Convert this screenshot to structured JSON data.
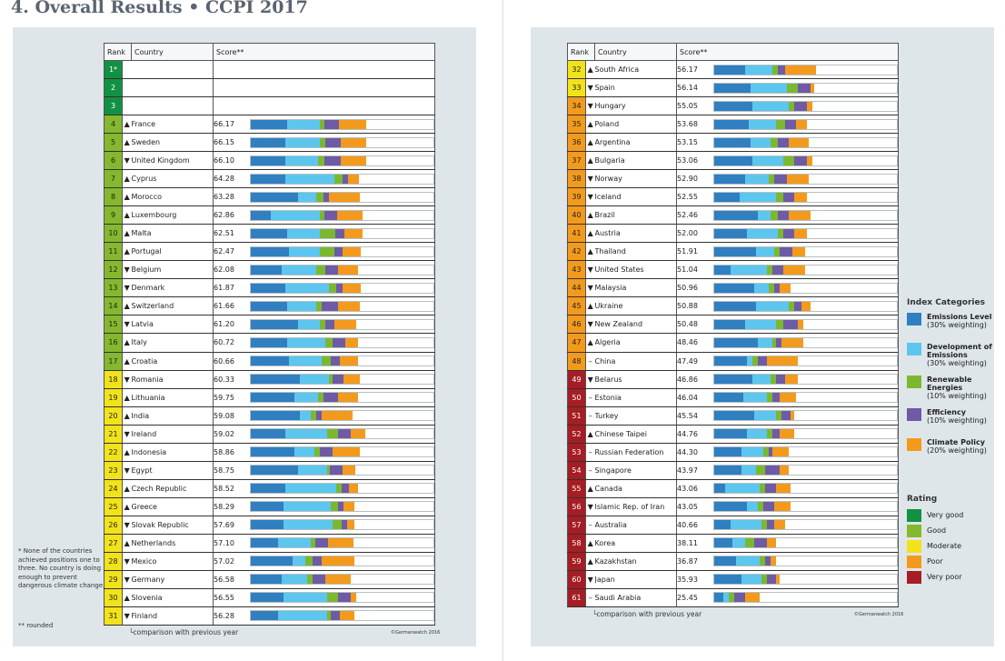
{
  "title": "4. Overall Results • CCPI 2017",
  "headers": {
    "rank": "Rank",
    "country": "Country",
    "score": "Score**"
  },
  "colors": {
    "emissions_level": "#2f7fc1",
    "development_of_emissions": "#5cc6ef",
    "renewable_energies": "#7cb82f",
    "efficiency": "#6e5aa5",
    "climate_policy": "#f39a1c",
    "very_good": "#129144",
    "good": "#86b82e",
    "moderate": "#f2e21a",
    "poor": "#f39a1c",
    "very_poor": "#a61d24"
  },
  "left_rows": [
    {
      "rank": "1*",
      "trend": "",
      "country": "",
      "score": "",
      "rating": "vg",
      "bars": []
    },
    {
      "rank": "2",
      "trend": "",
      "country": "",
      "score": "",
      "rating": "vg",
      "bars": []
    },
    {
      "rank": "3",
      "trend": "",
      "country": "",
      "score": "",
      "rating": "vg",
      "bars": []
    },
    {
      "rank": "4",
      "trend": "up",
      "country": "France",
      "score": "66.17",
      "rating": "g",
      "bars": [
        40,
        36,
        5,
        16,
        30
      ]
    },
    {
      "rank": "5",
      "trend": "up",
      "country": "Sweden",
      "score": "66.15",
      "rating": "g",
      "bars": [
        38,
        38,
        6,
        17,
        28
      ]
    },
    {
      "rank": "6",
      "trend": "down",
      "country": "United Kingdom",
      "score": "66.10",
      "rating": "g",
      "bars": [
        38,
        36,
        7,
        18,
        28
      ]
    },
    {
      "rank": "7",
      "trend": "up",
      "country": "Cyprus",
      "score": "64.28",
      "rating": "g",
      "bars": [
        38,
        54,
        9,
        6,
        12
      ]
    },
    {
      "rank": "8",
      "trend": "up",
      "country": "Morocco",
      "score": "63.28",
      "rating": "g",
      "bars": [
        52,
        20,
        8,
        6,
        34
      ]
    },
    {
      "rank": "9",
      "trend": "up",
      "country": "Luxembourg",
      "score": "62.86",
      "rating": "g",
      "bars": [
        22,
        54,
        5,
        14,
        28
      ]
    },
    {
      "rank": "10",
      "trend": "up",
      "country": "Malta",
      "score": "62.51",
      "rating": "g",
      "bars": [
        40,
        36,
        17,
        10,
        20
      ]
    },
    {
      "rank": "11",
      "trend": "up",
      "country": "Portugal",
      "score": "62.47",
      "rating": "g",
      "bars": [
        42,
        34,
        16,
        9,
        20
      ]
    },
    {
      "rank": "12",
      "trend": "down",
      "country": "Belgium",
      "score": "62.08",
      "rating": "g",
      "bars": [
        34,
        38,
        10,
        14,
        22
      ]
    },
    {
      "rank": "13",
      "trend": "down",
      "country": "Denmark",
      "score": "61.87",
      "rating": "g",
      "bars": [
        38,
        48,
        8,
        7,
        20
      ]
    },
    {
      "rank": "14",
      "trend": "up",
      "country": "Switzerland",
      "score": "61.66",
      "rating": "g",
      "bars": [
        40,
        32,
        6,
        18,
        24
      ]
    },
    {
      "rank": "15",
      "trend": "down",
      "country": "Latvia",
      "score": "61.20",
      "rating": "g",
      "bars": [
        52,
        24,
        6,
        10,
        24
      ]
    },
    {
      "rank": "16",
      "trend": "up",
      "country": "Italy",
      "score": "60.72",
      "rating": "g",
      "bars": [
        40,
        42,
        8,
        14,
        14
      ]
    },
    {
      "rank": "17",
      "trend": "up",
      "country": "Croatia",
      "score": "60.66",
      "rating": "g",
      "bars": [
        42,
        36,
        10,
        10,
        20
      ]
    },
    {
      "rank": "18",
      "trend": "down",
      "country": "Romania",
      "score": "60.33",
      "rating": "m",
      "bars": [
        54,
        32,
        4,
        12,
        18
      ]
    },
    {
      "rank": "19",
      "trend": "up",
      "country": "Lithuania",
      "score": "59.75",
      "rating": "m",
      "bars": [
        48,
        26,
        6,
        16,
        22
      ]
    },
    {
      "rank": "20",
      "trend": "up",
      "country": "India",
      "score": "59.08",
      "rating": "m",
      "bars": [
        54,
        12,
        6,
        6,
        34
      ]
    },
    {
      "rank": "21",
      "trend": "down",
      "country": "Ireland",
      "score": "59.02",
      "rating": "m",
      "bars": [
        38,
        46,
        12,
        14,
        16
      ]
    },
    {
      "rank": "22",
      "trend": "up",
      "country": "Indonesia",
      "score": "58.86",
      "rating": "m",
      "bars": [
        48,
        22,
        6,
        14,
        30
      ]
    },
    {
      "rank": "23",
      "trend": "down",
      "country": "Egypt",
      "score": "58.75",
      "rating": "m",
      "bars": [
        52,
        32,
        3,
        14,
        14
      ]
    },
    {
      "rank": "24",
      "trend": "up",
      "country": "Czech Republic",
      "score": "58.52",
      "rating": "m",
      "bars": [
        38,
        56,
        6,
        8,
        10
      ]
    },
    {
      "rank": "25",
      "trend": "up",
      "country": "Greece",
      "score": "58.29",
      "rating": "m",
      "bars": [
        36,
        52,
        8,
        6,
        12
      ]
    },
    {
      "rank": "26",
      "trend": "down",
      "country": "Slovak Republic",
      "score": "57.69",
      "rating": "m",
      "bars": [
        36,
        54,
        10,
        6,
        8
      ]
    },
    {
      "rank": "27",
      "trend": "up",
      "country": "Netherlands",
      "score": "57.10",
      "rating": "m",
      "bars": [
        30,
        36,
        5,
        14,
        28
      ]
    },
    {
      "rank": "28",
      "trend": "down",
      "country": "Mexico",
      "score": "57.02",
      "rating": "m",
      "bars": [
        46,
        14,
        8,
        10,
        36
      ]
    },
    {
      "rank": "29",
      "trend": "down",
      "country": "Germany",
      "score": "56.58",
      "rating": "m",
      "bars": [
        34,
        28,
        6,
        14,
        28
      ]
    },
    {
      "rank": "30",
      "trend": "up",
      "country": "Slovenia",
      "score": "56.55",
      "rating": "m",
      "bars": [
        36,
        48,
        12,
        14,
        6
      ]
    },
    {
      "rank": "31",
      "trend": "down",
      "country": "Finland",
      "score": "56.28",
      "rating": "m",
      "bars": [
        30,
        54,
        4,
        10,
        16
      ]
    }
  ],
  "right_rows": [
    {
      "rank": "32",
      "trend": "up",
      "country": "South Africa",
      "score": "56.17",
      "rating": "m",
      "bars": [
        34,
        30,
        6,
        8,
        34
      ]
    },
    {
      "rank": "33",
      "trend": "down",
      "country": "Spain",
      "score": "56.14",
      "rating": "m",
      "bars": [
        40,
        40,
        12,
        14,
        4
      ]
    },
    {
      "rank": "34",
      "trend": "down",
      "country": "Hungary",
      "score": "55.05",
      "rating": "p",
      "bars": [
        42,
        40,
        6,
        14,
        6
      ]
    },
    {
      "rank": "35",
      "trend": "up",
      "country": "Poland",
      "score": "53.68",
      "rating": "p",
      "bars": [
        38,
        30,
        10,
        12,
        12
      ]
    },
    {
      "rank": "36",
      "trend": "up",
      "country": "Argentina",
      "score": "53.15",
      "rating": "p",
      "bars": [
        40,
        22,
        8,
        12,
        22
      ]
    },
    {
      "rank": "37",
      "trend": "up",
      "country": "Bulgaria",
      "score": "53.06",
      "rating": "p",
      "bars": [
        42,
        34,
        12,
        14,
        6
      ]
    },
    {
      "rank": "38",
      "trend": "down",
      "country": "Norway",
      "score": "52.90",
      "rating": "p",
      "bars": [
        34,
        26,
        6,
        14,
        24
      ]
    },
    {
      "rank": "39",
      "trend": "down",
      "country": "Iceland",
      "score": "52.55",
      "rating": "p",
      "bars": [
        28,
        40,
        8,
        12,
        14
      ]
    },
    {
      "rank": "40",
      "trend": "up",
      "country": "Brazil",
      "score": "52.46",
      "rating": "p",
      "bars": [
        48,
        14,
        8,
        12,
        24
      ]
    },
    {
      "rank": "41",
      "trend": "up",
      "country": "Austria",
      "score": "52.00",
      "rating": "p",
      "bars": [
        36,
        34,
        6,
        12,
        14
      ]
    },
    {
      "rank": "42",
      "trend": "up",
      "country": "Thailand",
      "score": "51.91",
      "rating": "p",
      "bars": [
        46,
        20,
        6,
        14,
        14
      ]
    },
    {
      "rank": "43",
      "trend": "down",
      "country": "United States",
      "score": "51.04",
      "rating": "p",
      "bars": [
        18,
        40,
        6,
        12,
        24
      ]
    },
    {
      "rank": "44",
      "trend": "down",
      "country": "Malaysia",
      "score": "50.96",
      "rating": "p",
      "bars": [
        44,
        16,
        6,
        6,
        12
      ]
    },
    {
      "rank": "45",
      "trend": "up",
      "country": "Ukraine",
      "score": "50.88",
      "rating": "p",
      "bars": [
        46,
        36,
        6,
        8,
        10
      ]
    },
    {
      "rank": "46",
      "trend": "down",
      "country": "New Zealand",
      "score": "50.48",
      "rating": "p",
      "bars": [
        34,
        34,
        8,
        16,
        6
      ]
    },
    {
      "rank": "47",
      "trend": "up",
      "country": "Algeria",
      "score": "48.46",
      "rating": "p",
      "bars": [
        48,
        16,
        4,
        6,
        24
      ]
    },
    {
      "rank": "48",
      "trend": "dash",
      "country": "China",
      "score": "47.49",
      "rating": "p",
      "bars": [
        36,
        6,
        6,
        10,
        34
      ]
    },
    {
      "rank": "49",
      "trend": "down",
      "country": "Belarus",
      "score": "46.86",
      "rating": "vp",
      "bars": [
        42,
        20,
        6,
        10,
        14
      ]
    },
    {
      "rank": "50",
      "trend": "dash",
      "country": "Estonia",
      "score": "46.04",
      "rating": "vp",
      "bars": [
        32,
        26,
        6,
        8,
        18
      ]
    },
    {
      "rank": "51",
      "trend": "dash",
      "country": "Turkey",
      "score": "45.54",
      "rating": "vp",
      "bars": [
        44,
        24,
        6,
        10,
        4
      ]
    },
    {
      "rank": "52",
      "trend": "up",
      "country": "Chinese Taipei",
      "score": "44.76",
      "rating": "vp",
      "bars": [
        36,
        22,
        6,
        8,
        16
      ]
    },
    {
      "rank": "53",
      "trend": "dash",
      "country": "Russian Federation",
      "score": "44.30",
      "rating": "vp",
      "bars": [
        30,
        24,
        6,
        4,
        18
      ]
    },
    {
      "rank": "54",
      "trend": "dash",
      "country": "Singapore",
      "score": "43.97",
      "rating": "vp",
      "bars": [
        30,
        16,
        10,
        16,
        10
      ]
    },
    {
      "rank": "55",
      "trend": "up",
      "country": "Canada",
      "score": "43.06",
      "rating": "vp",
      "bars": [
        12,
        38,
        6,
        12,
        16
      ]
    },
    {
      "rank": "56",
      "trend": "down",
      "country": "Islamic Rep. of Iran",
      "score": "43.05",
      "rating": "vp",
      "bars": [
        36,
        12,
        6,
        12,
        18
      ]
    },
    {
      "rank": "57",
      "trend": "dash",
      "country": "Australia",
      "score": "40.66",
      "rating": "vp",
      "bars": [
        18,
        34,
        6,
        8,
        12
      ]
    },
    {
      "rank": "58",
      "trend": "up",
      "country": "Korea",
      "score": "38.11",
      "rating": "vp",
      "bars": [
        20,
        14,
        10,
        14,
        10
      ]
    },
    {
      "rank": "59",
      "trend": "up",
      "country": "Kazakhstan",
      "score": "36.87",
      "rating": "vp",
      "bars": [
        24,
        26,
        6,
        6,
        6
      ]
    },
    {
      "rank": "60",
      "trend": "down",
      "country": "Japan",
      "score": "35.93",
      "rating": "vp",
      "bars": [
        30,
        22,
        6,
        10,
        4
      ]
    },
    {
      "rank": "61",
      "trend": "dash",
      "country": "Saudi Arabia",
      "score": "25.45",
      "rating": "vp",
      "bars": [
        10,
        6,
        6,
        12,
        16
      ]
    }
  ],
  "comparison_note": "comparison with previous year",
  "germanwatch": "©Germanwatch 2016",
  "footnote_star": "* None of the countries achieved positions one to three. No country is doing enough to prevent dangerous climate change.",
  "footnote_rounded": "** rounded",
  "legend": {
    "index_title": "Index Categories",
    "categories": [
      {
        "name": "Emissions Level",
        "weight": "(30% weighting)",
        "color_key": "emissions_level"
      },
      {
        "name": "Development of Emissions",
        "weight": "(30% weighting)",
        "color_key": "development_of_emissions"
      },
      {
        "name": "Renewable Energies",
        "weight": "(10% weighting)",
        "color_key": "renewable_energies"
      },
      {
        "name": "Efficiency",
        "weight": "(10% weighting)",
        "color_key": "efficiency"
      },
      {
        "name": "Climate Policy",
        "weight": "(20% weighting)",
        "color_key": "climate_policy"
      }
    ],
    "rating_title": "Rating",
    "ratings": [
      {
        "name": "Very good",
        "color_key": "very_good"
      },
      {
        "name": "Good",
        "color_key": "good"
      },
      {
        "name": "Moderate",
        "color_key": "moderate"
      },
      {
        "name": "Poor",
        "color_key": "poor"
      },
      {
        "name": "Very poor",
        "color_key": "very_poor"
      }
    ]
  }
}
